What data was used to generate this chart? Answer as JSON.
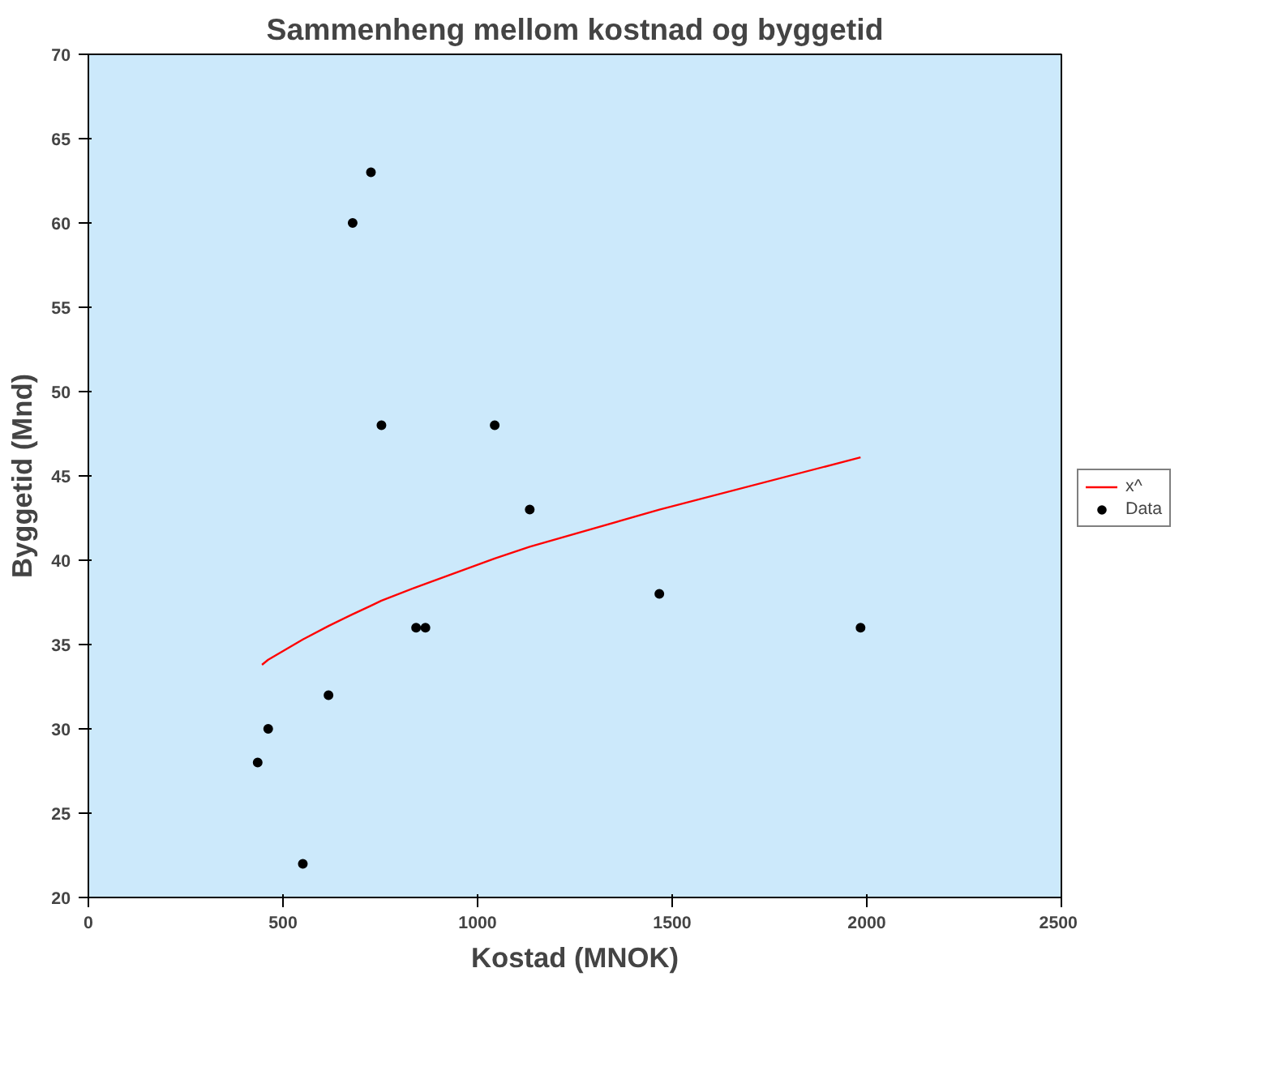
{
  "chart_data": {
    "type": "scatter",
    "title": "Sammenheng mellom kostnad og byggetid",
    "xlabel": "Kostad (MNOK)",
    "ylabel": "Byggetid (Mnd)",
    "xlim": [
      0,
      2500
    ],
    "ylim": [
      20,
      70
    ],
    "xticks": [
      0,
      500,
      1000,
      1500,
      2000,
      2500
    ],
    "yticks": [
      20,
      25,
      30,
      35,
      40,
      45,
      50,
      55,
      60,
      65,
      70
    ],
    "grid": false,
    "legend": "right",
    "series": [
      {
        "name": "x^",
        "type": "line",
        "color": "#ff0000",
        "line_style": "solid",
        "marker": "none",
        "x": [
          446,
          462,
          551,
          617,
          679,
          726,
          753,
          842,
          866,
          1044,
          1134,
          1467,
          1984
        ],
        "values": [
          33.8,
          34.1,
          35.3,
          36.1,
          36.8,
          37.3,
          37.6,
          38.4,
          38.6,
          40.1,
          40.8,
          43.0,
          46.1
        ]
      },
      {
        "name": "Data",
        "color": "#000000",
        "marker": "circle",
        "x": [
          435,
          462,
          551,
          617,
          679,
          726,
          753,
          842,
          866,
          1044,
          1134,
          1467,
          1984
        ],
        "values": [
          28,
          30,
          22,
          32,
          60,
          63,
          48,
          36,
          36,
          48,
          43,
          38,
          36
        ]
      }
    ]
  }
}
